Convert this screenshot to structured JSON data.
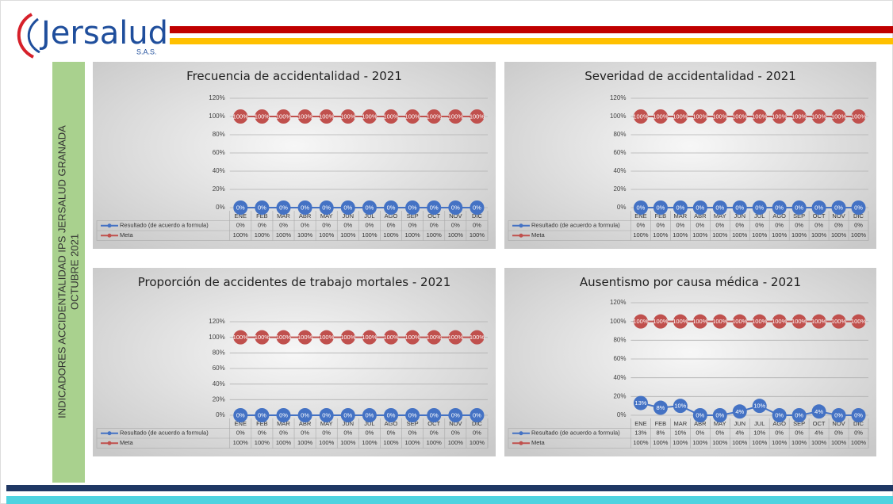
{
  "header": {
    "logo": "Jersalud",
    "logo_sub": "S.A.S."
  },
  "sidebar": [
    "INDICADORES ACCIDENTALIDAD IPS JERSALUD GRANADA",
    "OCTUBRE 2021"
  ],
  "chart_data": [
    {
      "type": "line",
      "title": "Frecuencia de accidentalidad -  2021",
      "categories": [
        "ENE",
        "FEB",
        "MAR",
        "ABR",
        "MAY",
        "JUN",
        "JUL",
        "AGO",
        "SEP",
        "OCT",
        "NOV",
        "DIC"
      ],
      "ylim": [
        0,
        120
      ],
      "yticks": [
        {
          "value": 0,
          "label": "0%"
        },
        {
          "value": 20,
          "label": "20%"
        },
        {
          "value": 40,
          "label": "40%"
        },
        {
          "value": 60,
          "label": "60%"
        },
        {
          "value": 80,
          "label": "80%"
        },
        {
          "value": 100,
          "label": "100%"
        },
        {
          "value": 120,
          "label": "120%"
        }
      ],
      "grid": true,
      "series": [
        {
          "name": "Resultado (de acuerdo a formula)",
          "color": "#4472c4",
          "values": [
            0,
            0,
            0,
            0,
            0,
            0,
            0,
            0,
            0,
            0,
            0,
            0
          ],
          "value_labels": [
            "0%",
            "0%",
            "0%",
            "0%",
            "0%",
            "0%",
            "0%",
            "0%",
            "0%",
            "0%",
            "0%",
            "0%"
          ]
        },
        {
          "name": "Meta",
          "color": "#c0504d",
          "values": [
            100,
            100,
            100,
            100,
            100,
            100,
            100,
            100,
            100,
            100,
            100,
            100
          ],
          "value_labels": [
            "100%",
            "100%",
            "100%",
            "100%",
            "100%",
            "100%",
            "100%",
            "100%",
            "100%",
            "100%",
            "100%",
            "100%"
          ]
        }
      ]
    },
    {
      "type": "line",
      "title": "Severidad de accidentalidad -  2021",
      "categories": [
        "ENE",
        "FEB",
        "MAR",
        "ABR",
        "MAY",
        "JUN",
        "JUL",
        "AGO",
        "SEP",
        "OCT",
        "NOV",
        "DIC"
      ],
      "ylim": [
        0,
        120
      ],
      "yticks": [
        {
          "value": 0,
          "label": "0%"
        },
        {
          "value": 20,
          "label": "20%"
        },
        {
          "value": 40,
          "label": "40%"
        },
        {
          "value": 60,
          "label": "60%"
        },
        {
          "value": 80,
          "label": "80%"
        },
        {
          "value": 100,
          "label": "100%"
        },
        {
          "value": 120,
          "label": "120%"
        }
      ],
      "grid": true,
      "series": [
        {
          "name": "Resultado (de acuerdo a formula)",
          "color": "#4472c4",
          "values": [
            0,
            0,
            0,
            0,
            0,
            0,
            0,
            0,
            0,
            0,
            0,
            0
          ],
          "value_labels": [
            "0%",
            "0%",
            "0%",
            "0%",
            "0%",
            "0%",
            "0%",
            "0%",
            "0%",
            "0%",
            "0%",
            "0%"
          ]
        },
        {
          "name": "Meta",
          "color": "#c0504d",
          "values": [
            100,
            100,
            100,
            100,
            100,
            100,
            100,
            100,
            100,
            100,
            100,
            100
          ],
          "value_labels": [
            "100%",
            "100%",
            "100%",
            "100%",
            "100%",
            "100%",
            "100%",
            "100%",
            "100%",
            "100%",
            "100%",
            "100%"
          ]
        }
      ]
    },
    {
      "type": "line",
      "title": "Proporción de accidentes de trabajo mortales   - 2021",
      "categories": [
        "ENE",
        "FEB",
        "MAR",
        "ABR",
        "MAY",
        "JUN",
        "JUL",
        "AGO",
        "SEP",
        "OCT",
        "NOV",
        "DIC"
      ],
      "ylim": [
        0,
        120
      ],
      "yticks": [
        {
          "value": 0,
          "label": "0%"
        },
        {
          "value": 20,
          "label": "20%"
        },
        {
          "value": 40,
          "label": "40%"
        },
        {
          "value": 60,
          "label": "60%"
        },
        {
          "value": 80,
          "label": "80%"
        },
        {
          "value": 100,
          "label": "100%"
        },
        {
          "value": 120,
          "label": "120%"
        }
      ],
      "grid": true,
      "series": [
        {
          "name": "Resultado (de acuerdo a formula)",
          "color": "#4472c4",
          "values": [
            0,
            0,
            0,
            0,
            0,
            0,
            0,
            0,
            0,
            0,
            0,
            0
          ],
          "value_labels": [
            "0%",
            "0%",
            "0%",
            "0%",
            "0%",
            "0%",
            "0%",
            "0%",
            "0%",
            "0%",
            "0%",
            "0%"
          ]
        },
        {
          "name": "Meta",
          "color": "#c0504d",
          "values": [
            100,
            100,
            100,
            100,
            100,
            100,
            100,
            100,
            100,
            100,
            100,
            100
          ],
          "value_labels": [
            "100%",
            "100%",
            "100%",
            "100%",
            "100%",
            "100%",
            "100%",
            "100%",
            "100%",
            "100%",
            "100%",
            "100%"
          ]
        }
      ]
    },
    {
      "type": "line",
      "title": "Ausentismo por causa médica -  2021",
      "categories": [
        "ENE",
        "FEB",
        "MAR",
        "ABR",
        "MAY",
        "JUN",
        "JUL",
        "AGO",
        "SEP",
        "OCT",
        "NOV",
        "DIC"
      ],
      "ylim": [
        0,
        120
      ],
      "yticks": [
        {
          "value": 0,
          "label": "0%"
        },
        {
          "value": 20,
          "label": "20%"
        },
        {
          "value": 40,
          "label": "40%"
        },
        {
          "value": 60,
          "label": "60%"
        },
        {
          "value": 80,
          "label": "80%"
        },
        {
          "value": 100,
          "label": "100%"
        },
        {
          "value": 120,
          "label": "120%"
        }
      ],
      "grid": true,
      "series": [
        {
          "name": "Resultado (de acuerdo a formula)",
          "color": "#4472c4",
          "values": [
            13,
            8,
            10,
            0,
            0,
            4,
            10,
            0,
            0,
            4,
            0,
            0
          ],
          "value_labels": [
            "13%",
            "8%",
            "10%",
            "0%",
            "0%",
            "4%",
            "10%",
            "0%",
            "0%",
            "4%",
            "0%",
            "0%"
          ]
        },
        {
          "name": "Meta",
          "color": "#c0504d",
          "values": [
            100,
            100,
            100,
            100,
            100,
            100,
            100,
            100,
            100,
            100,
            100,
            100
          ],
          "value_labels": [
            "100%",
            "100%",
            "100%",
            "100%",
            "100%",
            "100%",
            "100%",
            "100%",
            "100%",
            "100%",
            "100%",
            "100%"
          ]
        }
      ]
    }
  ]
}
